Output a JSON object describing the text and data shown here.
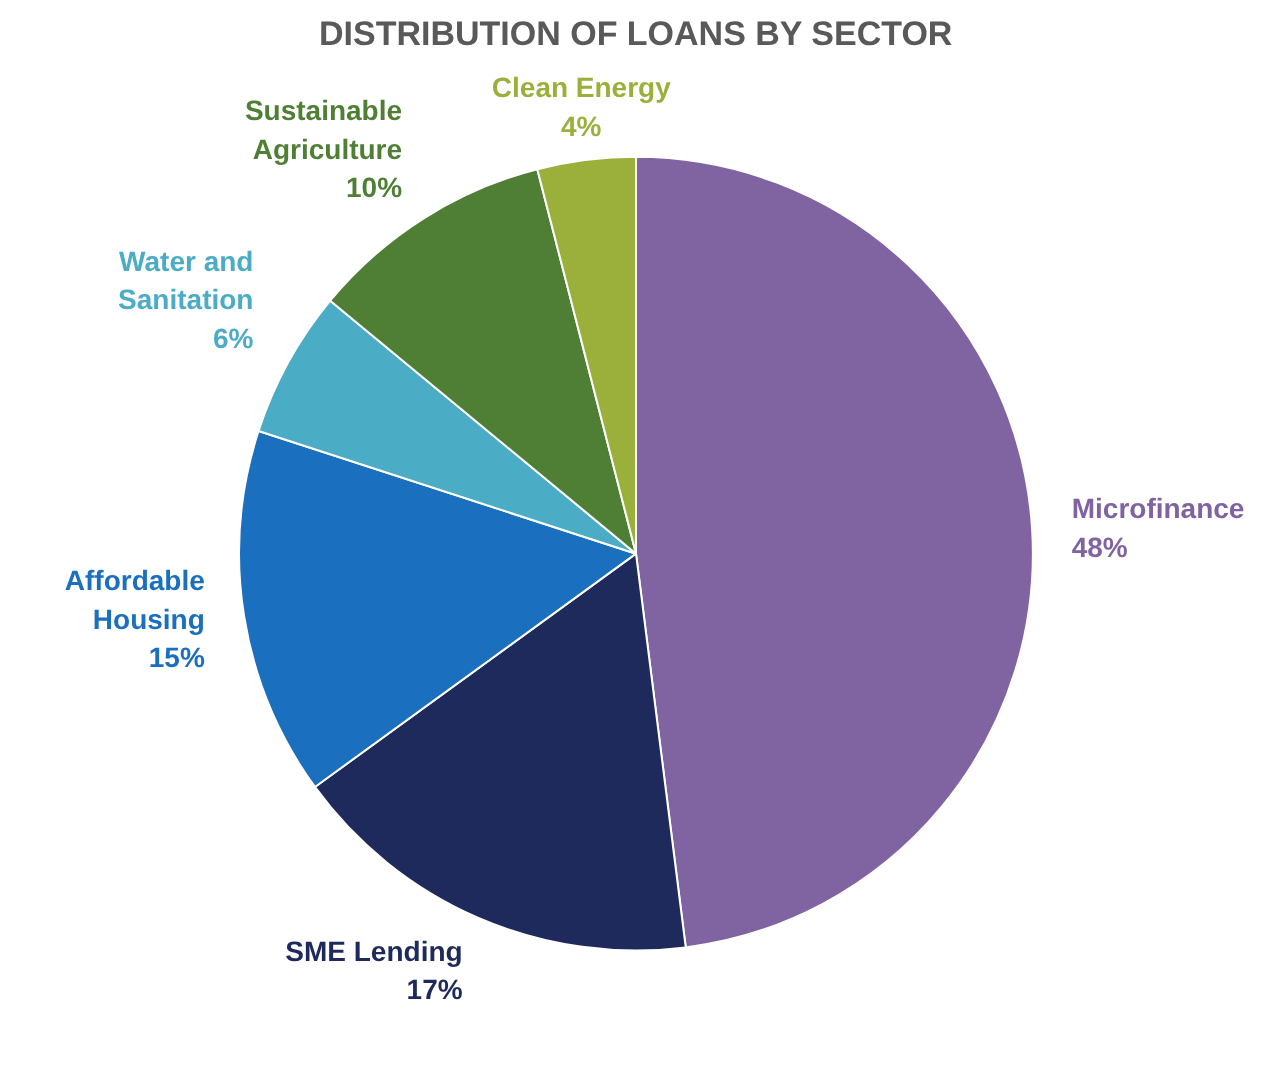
{
  "chart_data": {
    "type": "pie",
    "title": "DISTRIBUTION OF LOANS BY SECTOR",
    "categories": [
      "Microfinance",
      "SME Lending",
      "Affordable Housing",
      "Water and Sanitation",
      "Sustainable Agriculture",
      "Clean Energy"
    ],
    "values": [
      48,
      17,
      15,
      6,
      10,
      4
    ],
    "value_labels": [
      "48%",
      "17%",
      "15%",
      "6%",
      "10%",
      "4%"
    ],
    "colors": [
      "#8064a2",
      "#1f2a5c",
      "#1a6fbf",
      "#4bacc6",
      "#4f7f35",
      "#9bb03b"
    ],
    "legend": false
  }
}
